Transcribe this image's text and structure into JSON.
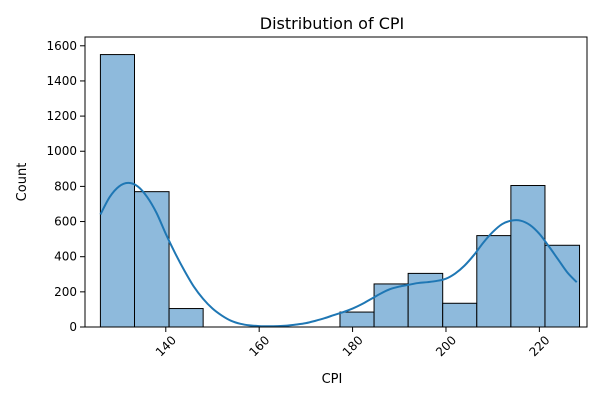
{
  "chart_data": {
    "type": "bar",
    "title": "Distribution of CPI",
    "xlabel": "CPI",
    "ylabel": "Count",
    "xlim": [
      122.7,
      230.2
    ],
    "ylim": [
      0,
      1650
    ],
    "x_ticks": [
      140,
      160,
      180,
      200,
      220
    ],
    "y_ticks": [
      0,
      200,
      400,
      600,
      800,
      1000,
      1200,
      1400,
      1600
    ],
    "bin_edges": [
      126.0,
      133.3,
      140.7,
      148.0,
      155.3,
      162.6,
      170.0,
      177.3,
      184.6,
      191.9,
      199.3,
      206.6,
      213.9,
      221.2,
      228.6
    ],
    "counts": [
      1550,
      770,
      105,
      0,
      0,
      0,
      0,
      85,
      245,
      305,
      135,
      520,
      805,
      465
    ],
    "kde": {
      "x": [
        126,
        128,
        130,
        132,
        134,
        136,
        138,
        140,
        142,
        144,
        146,
        148,
        150,
        152,
        154,
        156,
        158,
        160,
        162,
        164,
        166,
        168,
        170,
        172,
        174,
        176,
        178,
        180,
        182,
        184,
        186,
        188,
        190,
        192,
        194,
        196,
        198,
        200,
        202,
        204,
        206,
        208,
        210,
        212,
        214,
        216,
        218,
        220,
        222,
        224,
        226,
        228
      ],
      "y": [
        640,
        740,
        800,
        820,
        800,
        740,
        650,
        530,
        420,
        320,
        230,
        160,
        105,
        65,
        35,
        18,
        9,
        5,
        4,
        5,
        8,
        14,
        22,
        35,
        50,
        68,
        85,
        105,
        130,
        160,
        190,
        215,
        230,
        240,
        250,
        255,
        262,
        275,
        305,
        350,
        410,
        480,
        540,
        585,
        605,
        605,
        580,
        530,
        460,
        385,
        310,
        255
      ]
    },
    "colors": {
      "bar_fill": "#8ebadc",
      "bar_edge": "#000000",
      "kde_line": "#1f77b4"
    },
    "grid": false
  }
}
